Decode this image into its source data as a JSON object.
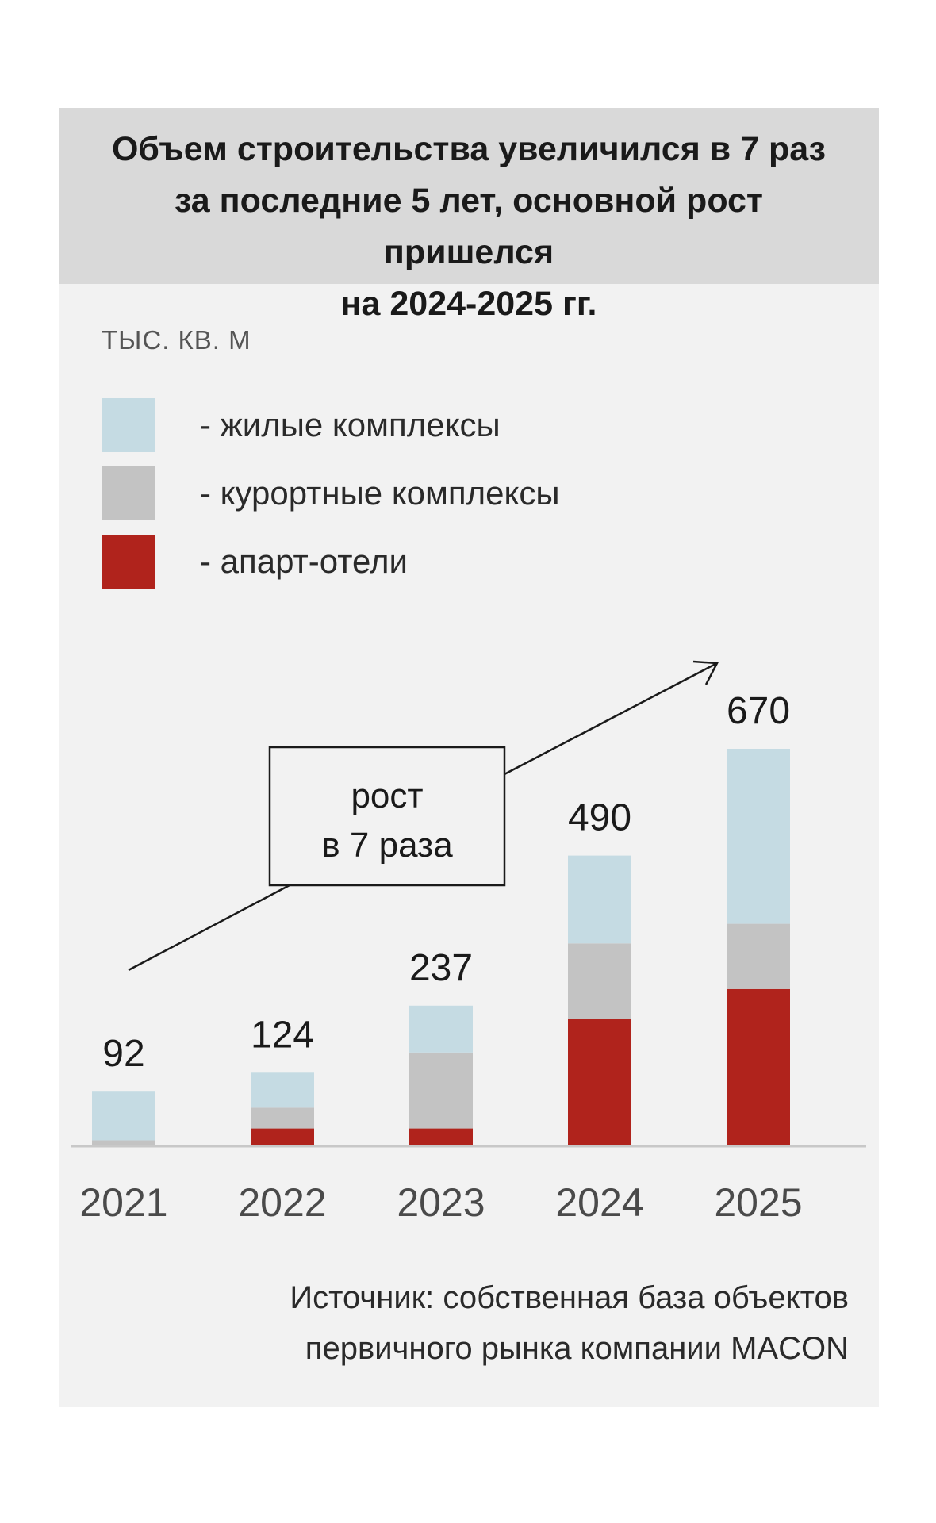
{
  "title": "Объем строительства увеличился в 7 раз\nза последние 5 лет, основной рост пришелся\nна 2024-2025 гг.",
  "unit_label": "ТЫС. КВ. М",
  "legend": [
    {
      "label": "- жилые комплексы",
      "color": "#c5dbe3"
    },
    {
      "label": "- курортные комплексы",
      "color": "#c3c3c3"
    },
    {
      "label": "- апарт-отели",
      "color": "#b0231c"
    }
  ],
  "annotation": {
    "line1": "рост",
    "line2": "в 7 раза"
  },
  "source": "Источник: собственная база объектов\nпервичного рынка компании MACON",
  "chart_data": {
    "type": "bar",
    "stacked": true,
    "categories": [
      "2021",
      "2022",
      "2023",
      "2024",
      "2025"
    ],
    "totals": [
      92,
      124,
      237,
      490,
      670
    ],
    "series": [
      {
        "name": "апарт-отели",
        "color": "#b0231c",
        "values": [
          0,
          30,
          30,
          215,
          265
        ]
      },
      {
        "name": "курортные комплексы",
        "color": "#c3c3c3",
        "values": [
          10,
          35,
          128,
          127,
          110
        ]
      },
      {
        "name": "жилые комплексы",
        "color": "#c5dbe3",
        "values": [
          82,
          59,
          79,
          148,
          295
        ]
      }
    ],
    "ylim": [
      0,
      670
    ],
    "grid": false
  }
}
